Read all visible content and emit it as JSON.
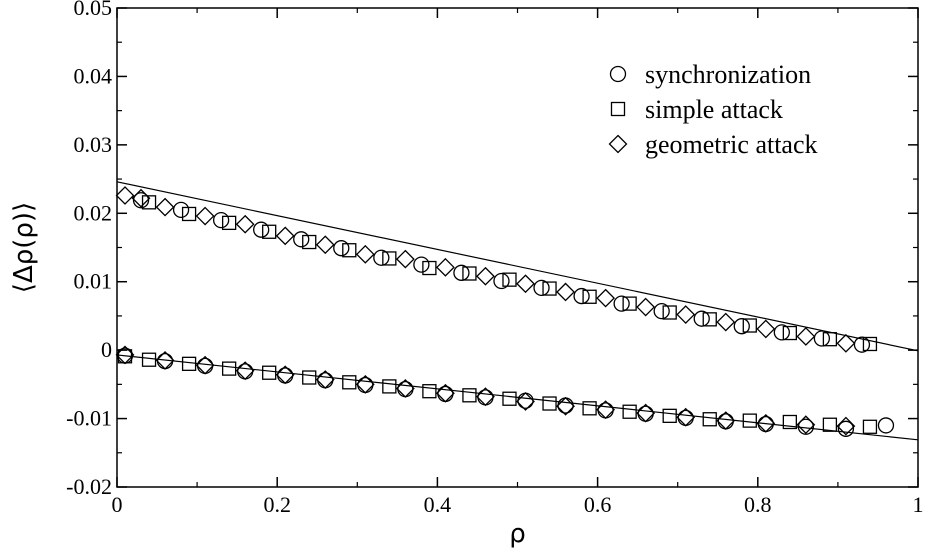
{
  "chart_data": {
    "type": "scatter",
    "title": "",
    "xlabel": "ρ",
    "ylabel": "⟨Δρ(ρ)⟩",
    "xlim": [
      0,
      1
    ],
    "ylim": [
      -0.02,
      0.05
    ],
    "x_ticks": [
      0,
      0.2,
      0.4,
      0.6,
      0.8,
      1
    ],
    "x_tick_labels": [
      "0",
      "0.2",
      "0.4",
      "0.6",
      "0.8",
      "1"
    ],
    "y_ticks": [
      -0.02,
      -0.01,
      0,
      0.01,
      0.02,
      0.03,
      0.04,
      0.05
    ],
    "y_tick_labels": [
      "-0.02",
      "-0.01",
      "0",
      "0.01",
      "0.02",
      "0.03",
      "0.04",
      "0.05"
    ],
    "grid": false,
    "legend_position": "top-right",
    "series": [
      {
        "name": "synchronization",
        "marker": "circle",
        "x": [
          0.01,
          0.06,
          0.11,
          0.16,
          0.21,
          0.26,
          0.31,
          0.36,
          0.41,
          0.46,
          0.51,
          0.56,
          0.61,
          0.66,
          0.71,
          0.76,
          0.81,
          0.86,
          0.91,
          0.96,
          0.03,
          0.08,
          0.13,
          0.18,
          0.23,
          0.28,
          0.33,
          0.38,
          0.43,
          0.48,
          0.53,
          0.58,
          0.63,
          0.68,
          0.73,
          0.78,
          0.83,
          0.88,
          0.93
        ],
        "y": [
          -0.0008,
          -0.0016,
          -0.0023,
          -0.0031,
          -0.0037,
          -0.0044,
          -0.0051,
          -0.0057,
          -0.0064,
          -0.0069,
          -0.0074,
          -0.0081,
          -0.0088,
          -0.0093,
          -0.0099,
          -0.0104,
          -0.0108,
          -0.0112,
          -0.0115,
          -0.011,
          0.0219,
          0.0205,
          0.019,
          0.0176,
          0.0162,
          0.0149,
          0.0135,
          0.0125,
          0.0113,
          0.0101,
          0.0091,
          0.0079,
          0.0068,
          0.0057,
          0.0046,
          0.0035,
          0.0026,
          0.0017,
          0.0008
        ]
      },
      {
        "name": "simple attack",
        "marker": "square",
        "x": [
          0.01,
          0.04,
          0.09,
          0.14,
          0.19,
          0.24,
          0.29,
          0.34,
          0.39,
          0.44,
          0.49,
          0.54,
          0.59,
          0.64,
          0.69,
          0.74,
          0.79,
          0.84,
          0.89,
          0.94,
          0.04,
          0.09,
          0.14,
          0.19,
          0.24,
          0.29,
          0.34,
          0.39,
          0.44,
          0.49,
          0.54,
          0.59,
          0.64,
          0.69,
          0.74,
          0.79,
          0.84,
          0.89,
          0.94
        ],
        "y": [
          -0.0009,
          -0.0014,
          -0.002,
          -0.0027,
          -0.0033,
          -0.004,
          -0.0047,
          -0.0053,
          -0.006,
          -0.0066,
          -0.0071,
          -0.0078,
          -0.0085,
          -0.009,
          -0.0096,
          -0.0101,
          -0.0103,
          -0.0105,
          -0.0109,
          -0.0112,
          0.0216,
          0.0199,
          0.0186,
          0.0173,
          0.0158,
          0.0146,
          0.0134,
          0.012,
          0.0112,
          0.0103,
          0.009,
          0.0078,
          0.0068,
          0.0055,
          0.0045,
          0.0036,
          0.0025,
          0.0016,
          0.0009
        ]
      },
      {
        "name": "geometric attack",
        "marker": "diamond",
        "x": [
          0.01,
          0.06,
          0.11,
          0.16,
          0.21,
          0.26,
          0.31,
          0.36,
          0.41,
          0.46,
          0.51,
          0.56,
          0.61,
          0.66,
          0.71,
          0.76,
          0.81,
          0.86,
          0.91,
          0.01,
          0.03,
          0.06,
          0.11,
          0.16,
          0.21,
          0.26,
          0.31,
          0.36,
          0.41,
          0.46,
          0.51,
          0.56,
          0.61,
          0.66,
          0.71,
          0.76,
          0.81,
          0.86,
          0.91
        ],
        "y": [
          -0.0007,
          -0.0015,
          -0.0022,
          -0.003,
          -0.0036,
          -0.0043,
          -0.005,
          -0.0056,
          -0.0063,
          -0.0068,
          -0.0075,
          -0.0082,
          -0.0087,
          -0.0092,
          -0.0098,
          -0.0103,
          -0.0107,
          -0.0109,
          -0.0111,
          0.0226,
          0.0222,
          0.0209,
          0.0196,
          0.0184,
          0.0167,
          0.0154,
          0.014,
          0.0133,
          0.0121,
          0.0108,
          0.0097,
          0.0085,
          0.0076,
          0.0063,
          0.0052,
          0.0041,
          0.0031,
          0.002,
          0.001
        ]
      }
    ],
    "fit_lines": [
      {
        "x": [
          0,
          1
        ],
        "y": [
          0.0246,
          -0.0001
        ]
      },
      {
        "x": [
          0,
          1
        ],
        "y": [
          -0.0007,
          -0.0131
        ]
      }
    ]
  }
}
